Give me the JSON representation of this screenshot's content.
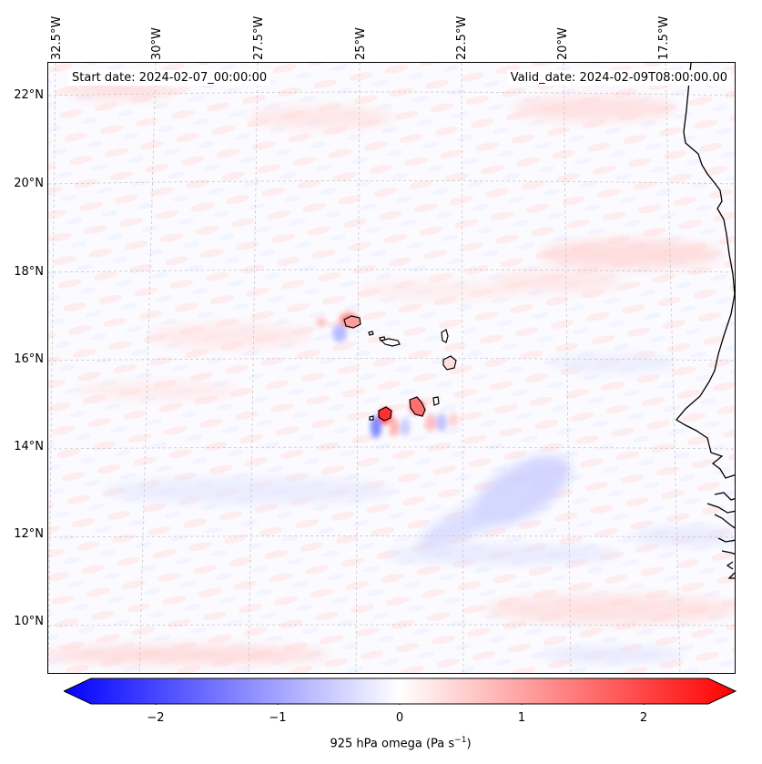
{
  "map": {
    "start_date": "Start date: 2024-02-07_00:00:00",
    "valid_date": "Valid_date: 2024-02-09T08:00:00.00",
    "lon_labels": [
      "32.5°W",
      "30°W",
      "27.5°W",
      "25°W",
      "22.5°W",
      "20°W",
      "17.5°W"
    ],
    "lat_labels": [
      "22°N",
      "20°N",
      "18°N",
      "16°N",
      "14°N",
      "12°N",
      "10°N"
    ],
    "colors": {
      "negative_max": "#0000ff",
      "positive_max": "#ff0000",
      "neutral": "#ffffff",
      "coastline": "#000000",
      "grid": "#c8c8c8"
    }
  },
  "colorbar": {
    "label_prefix": "925 hPa omega (Pa s",
    "label_superscript": "−1",
    "label_suffix": ")",
    "ticks": [
      "−2",
      "−1",
      "0",
      "1",
      "2"
    ],
    "tick_values": [
      -2,
      -1,
      0,
      1,
      2
    ],
    "range": [
      -2.5,
      2.5
    ]
  }
}
